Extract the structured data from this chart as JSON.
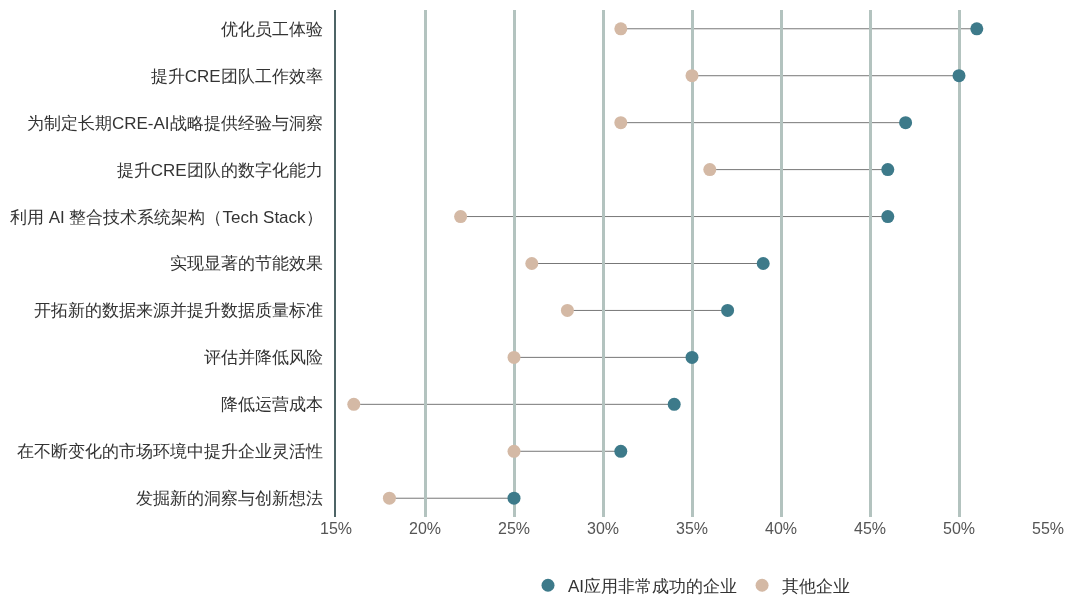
{
  "chart_data": {
    "type": "scatter",
    "orientation": "horizontal",
    "categories": [
      "优化员工体验",
      "提升CRE团队工作效率",
      "为制定长期CRE-AI战略提供经验与洞察",
      "提升CRE团队的数字化能力",
      "利用 AI 整合技术系统架构（Tech Stack）",
      "实现显著的节能效果",
      "开拓新的数据来源并提升数据质量标准",
      "评估并降低风险",
      "降低运营成本",
      "在不断变化的市场环境中提升企业灵活性",
      "发掘新的洞察与创新想法"
    ],
    "series": [
      {
        "name": "AI应用非常成功的企业",
        "color": "#3d7a8a",
        "values": [
          51,
          50,
          47,
          46,
          46,
          39,
          37,
          35,
          34,
          31,
          25
        ]
      },
      {
        "name": "其他企业",
        "color": "#d4b9a5",
        "values": [
          31,
          35,
          31,
          36,
          22,
          26,
          28,
          25,
          16,
          25,
          18
        ]
      }
    ],
    "xlim": [
      15,
      55
    ],
    "xticks": [
      {
        "value": 15,
        "label": "15%"
      },
      {
        "value": 20,
        "label": "20%"
      },
      {
        "value": 25,
        "label": "25%"
      },
      {
        "value": 30,
        "label": "30%"
      },
      {
        "value": 35,
        "label": "35%"
      },
      {
        "value": 40,
        "label": "40%"
      },
      {
        "value": 45,
        "label": "45%"
      },
      {
        "value": 50,
        "label": "50%"
      },
      {
        "value": 55,
        "label": "55%"
      }
    ],
    "grid": "x",
    "legend": "bottom",
    "marker": "circle"
  }
}
